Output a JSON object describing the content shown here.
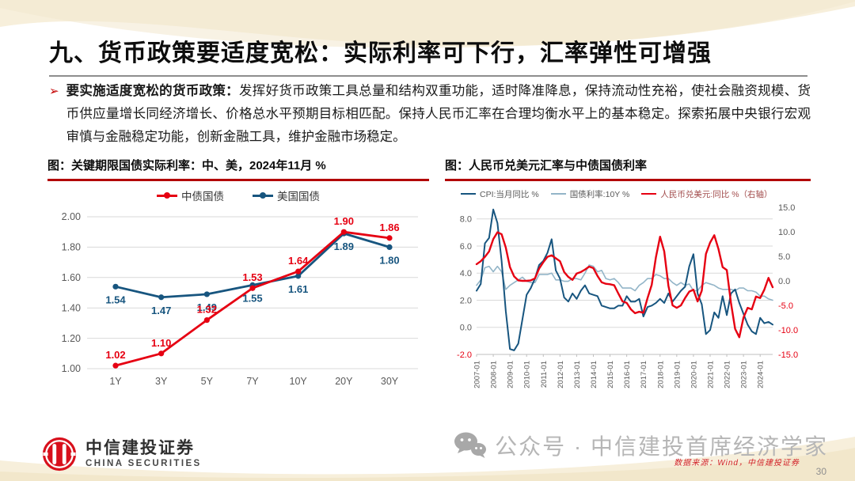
{
  "header": {
    "title": "九、货币政策要适度宽松：实际利率可下行，汇率弹性可增强"
  },
  "intro": {
    "marker": "➢",
    "lead": "要实施适度宽松的货币政策：",
    "body": "发挥好货币政策工具总量和结构双重功能，适时降准降息，保持流动性充裕，使社会融资规模、货币供应量增长同经济增长、价格总水平预期目标相匹配。保持人民币汇率在合理均衡水平上的基本稳定。探索拓展中央银行宏观审慎与金融稳定功能，创新金融工具，维护金融市场稳定。"
  },
  "colors": {
    "series_red": "#e60012",
    "series_dark_blue": "#17557f",
    "series_light_blue": "#93b5c8",
    "rule_red": "#b20000",
    "axis_gray": "#595959",
    "negative_red": "#e60012",
    "grid_gray": "#d9d9d9"
  },
  "chart_data": [
    {
      "type": "line",
      "title": "图：关键期限国债实际利率：中、美，2024年11月 %",
      "categories": [
        "1Y",
        "3Y",
        "5Y",
        "7Y",
        "10Y",
        "20Y",
        "30Y"
      ],
      "series": [
        {
          "name": "中债国债",
          "color": "#e60012",
          "values": [
            1.02,
            1.1,
            1.32,
            1.53,
            1.64,
            1.9,
            1.86
          ]
        },
        {
          "name": "美国国债",
          "color": "#17557f",
          "values": [
            1.54,
            1.47,
            1.49,
            1.55,
            1.61,
            1.89,
            1.8
          ]
        }
      ],
      "ylim": [
        1.0,
        2.0
      ],
      "yticks": [
        1.0,
        1.2,
        1.4,
        1.6,
        1.8,
        2.0
      ],
      "grid": true,
      "legend_position": "top",
      "value_labels": true
    },
    {
      "type": "line",
      "title": "图：人民币兑美元汇率与中债国债利率",
      "x_labels": [
        "2007-01",
        "2008-01",
        "2009-01",
        "2010-01",
        "2011-01",
        "2012-01",
        "2013-01",
        "2014-01",
        "2015-01",
        "2016-01",
        "2017-01",
        "2018-01",
        "2019-01",
        "2020-01",
        "2021-01",
        "2022-01",
        "2023-01",
        "2024-01"
      ],
      "points_per_year": 4,
      "left_axis": {
        "lim": [
          -2,
          8.86
        ],
        "ticks": [
          8,
          6,
          4,
          2,
          0,
          -2
        ]
      },
      "right_axis": {
        "lim": [
          -15,
          15
        ],
        "ticks": [
          15,
          10,
          5,
          0,
          -5,
          -10,
          -15
        ]
      },
      "grid": true,
      "legend_position": "top",
      "series": [
        {
          "name": "CPI:当月同比 %",
          "axis": "left",
          "color": "#17557f",
          "label_color": "#595959",
          "values": [
            2.7,
            3.2,
            6.2,
            6.6,
            8.7,
            7.7,
            4.9,
            1.2,
            -1.6,
            -1.7,
            -1.2,
            0.6,
            2.4,
            2.9,
            3.6,
            4.6,
            4.9,
            5.5,
            6.5,
            4.2,
            3.6,
            2.2,
            1.9,
            2.5,
            2.1,
            2.7,
            3.1,
            2.5,
            2.4,
            2.3,
            1.6,
            1.5,
            1.4,
            1.4,
            1.6,
            1.6,
            2.3,
            1.9,
            1.9,
            2.1,
            0.8,
            1.5,
            1.6,
            1.8,
            2.1,
            1.8,
            2.5,
            1.9,
            2.3,
            2.7,
            3.0,
            4.5,
            5.4,
            2.5,
            1.7,
            -0.5,
            -0.2,
            1.1,
            0.7,
            2.3,
            0.9,
            2.5,
            2.8,
            1.8,
            1.0,
            0.2,
            -0.3,
            -0.5,
            0.7,
            0.3,
            0.4,
            0.2
          ]
        },
        {
          "name": "国债利率:10Y %",
          "axis": "left",
          "color": "#93b5c8",
          "label_color": "#595959",
          "values": [
            3.1,
            3.5,
            4.4,
            4.5,
            4.1,
            4.5,
            4.1,
            2.8,
            3.1,
            3.3,
            3.5,
            3.7,
            3.4,
            3.3,
            3.3,
            3.9,
            3.9,
            3.9,
            4.0,
            3.5,
            3.5,
            3.4,
            3.4,
            3.6,
            3.6,
            3.5,
            4.0,
            4.6,
            4.5,
            4.1,
            4.2,
            3.6,
            3.5,
            3.6,
            3.3,
            2.9,
            2.9,
            2.9,
            2.7,
            3.1,
            3.3,
            3.6,
            3.6,
            3.9,
            3.8,
            3.6,
            3.6,
            3.3,
            3.1,
            3.3,
            3.1,
            3.2,
            2.7,
            2.7,
            3.1,
            3.3,
            3.2,
            3.1,
            2.9,
            2.8,
            2.8,
            2.8,
            2.7,
            2.9,
            2.9,
            2.7,
            2.7,
            2.6,
            2.3,
            2.3,
            2.1,
            2.0
          ]
        },
        {
          "name": "人民币兑美元:同比  %（右轴）",
          "axis": "right",
          "color": "#e60012",
          "label_color": "#a14b4b",
          "values": [
            3.4,
            4.0,
            4.9,
            6.0,
            8.5,
            9.9,
            9.5,
            6.8,
            2.8,
            0.9,
            0.1,
            0.0,
            0.0,
            0.1,
            0.5,
            2.5,
            3.8,
            4.9,
            5.2,
            4.6,
            4.0,
            1.8,
            0.8,
            0.2,
            1.5,
            1.8,
            2.3,
            2.9,
            2.6,
            1.0,
            -0.3,
            -0.6,
            -0.7,
            -0.9,
            -2.6,
            -4.2,
            -4.5,
            -5.8,
            -6.6,
            -6.3,
            -6.5,
            -3.5,
            -0.8,
            4.8,
            9.0,
            6.0,
            -1.0,
            -5.0,
            -5.5,
            -5.0,
            -3.5,
            -2.2,
            -1.8,
            -4.2,
            -2.0,
            5.5,
            7.8,
            9.3,
            6.5,
            2.8,
            2.2,
            -4.5,
            -9.8,
            -11.5,
            -7.5,
            -5.5,
            -5.8,
            -3.2,
            -3.5,
            -1.8,
            0.6,
            -1.3
          ]
        }
      ]
    }
  ],
  "footer": {
    "brand_cn": "中信建投证券",
    "brand_en": "CHINA SECURITIES",
    "wechat_caption": "公众号 · 中信建投首席经济学家",
    "source_note": "数据来源：Wind，中信建投证券",
    "page_number": "30"
  }
}
